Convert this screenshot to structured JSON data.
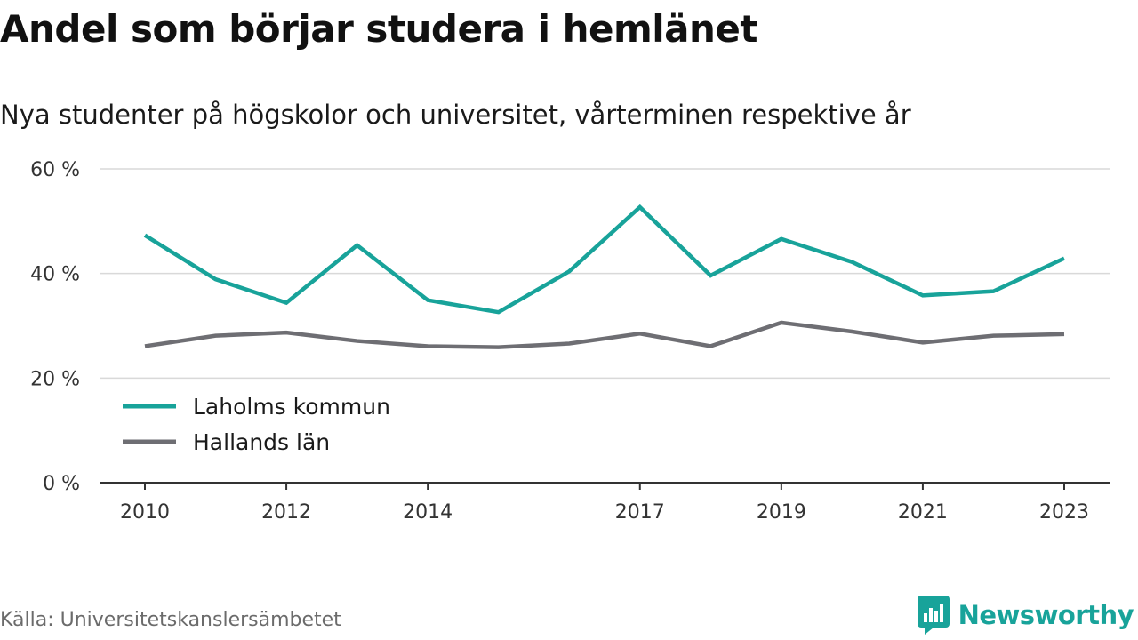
{
  "title": "Andel som börjar studera i hemlänet",
  "subtitle": "Nya studenter på högskolor och universitet, vårterminen respektive år",
  "source": "Källa: Universitetskanslersämbetet",
  "brand": {
    "name": "Newsworthy",
    "icon": "newsworthy-logo-icon",
    "color": "#18a39a"
  },
  "chart_data": {
    "type": "line",
    "x": [
      2010,
      2011,
      2012,
      2013,
      2014,
      2015,
      2016,
      2017,
      2018,
      2019,
      2020,
      2021,
      2022,
      2023
    ],
    "x_tick_labels": [
      "2010",
      "2012",
      "2014",
      "2017",
      "2019",
      "2021",
      "2023"
    ],
    "y_ticks": [
      0,
      20,
      40,
      60
    ],
    "y_tick_labels": [
      "0 %",
      "20 %",
      "40 %",
      "60 %"
    ],
    "ylim": [
      0,
      60
    ],
    "grid": true,
    "legend_position": "bottom-left",
    "series": [
      {
        "name": "Laholms kommun",
        "color": "#18a39a",
        "values": [
          47.3,
          38.9,
          34.4,
          45.4,
          34.9,
          32.6,
          40.4,
          52.7,
          39.6,
          46.6,
          42.2,
          35.8,
          36.6,
          42.9
        ]
      },
      {
        "name": "Hallands län",
        "color": "#6e6e73",
        "values": [
          26.1,
          28.1,
          28.7,
          27.1,
          26.1,
          25.9,
          26.6,
          28.5,
          26.1,
          30.6,
          28.9,
          26.8,
          28.1,
          28.4
        ]
      }
    ]
  }
}
